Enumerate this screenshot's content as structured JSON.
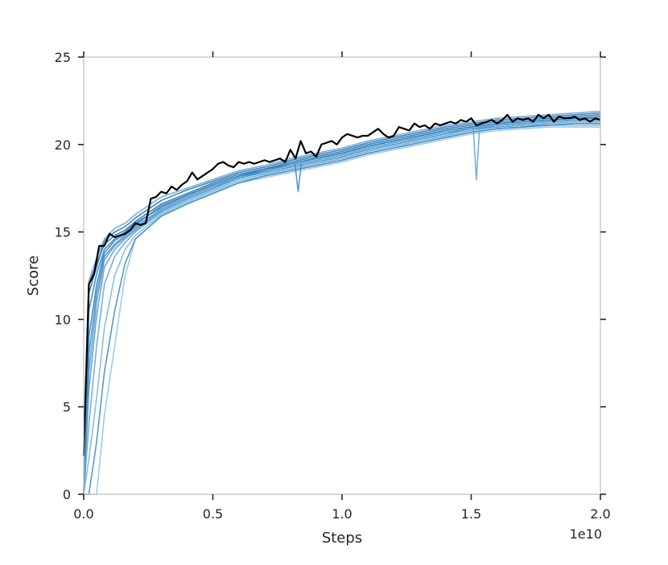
{
  "chart_data": {
    "type": "line",
    "xlabel": "Steps",
    "ylabel": "Score",
    "x_offset_label": "1e10",
    "xlim": [
      0,
      2.0
    ],
    "ylim": [
      0,
      25
    ],
    "x_ticks": [
      {
        "value": 0.0,
        "label": "0.0"
      },
      {
        "value": 0.5,
        "label": "0.5"
      },
      {
        "value": 1.0,
        "label": "1.0"
      },
      {
        "value": 1.5,
        "label": "1.5"
      },
      {
        "value": 2.0,
        "label": "2.0"
      }
    ],
    "y_ticks": [
      {
        "value": 0,
        "label": "0"
      },
      {
        "value": 5,
        "label": "5"
      },
      {
        "value": 10,
        "label": "10"
      },
      {
        "value": 15,
        "label": "15"
      },
      {
        "value": 20,
        "label": "20"
      },
      {
        "value": 25,
        "label": "25"
      }
    ],
    "grid": false,
    "legend": "none",
    "colors": {
      "runs": [
        "#1f6fb4",
        "#2b7bba",
        "#3a88c2",
        "#4b96cb",
        "#5ea3d2",
        "#76b3da",
        "#8ec2e2"
      ],
      "mean": "#000000"
    },
    "x": [
      0.0,
      0.02,
      0.05,
      0.08,
      0.12,
      0.16,
      0.2,
      0.3,
      0.4,
      0.5,
      0.6,
      0.7,
      0.8,
      0.9,
      1.0,
      1.1,
      1.2,
      1.3,
      1.4,
      1.5,
      1.6,
      1.7,
      1.8,
      1.9,
      2.0
    ],
    "mean": {
      "x": [
        0.0,
        0.02,
        0.04,
        0.06,
        0.08,
        0.1,
        0.12,
        0.14,
        0.16,
        0.18,
        0.2,
        0.22,
        0.24,
        0.26,
        0.28,
        0.3,
        0.32,
        0.34,
        0.36,
        0.38,
        0.4,
        0.42,
        0.44,
        0.46,
        0.48,
        0.5,
        0.52,
        0.54,
        0.56,
        0.58,
        0.6,
        0.62,
        0.64,
        0.66,
        0.68,
        0.7,
        0.72,
        0.74,
        0.76,
        0.78,
        0.8,
        0.82,
        0.84,
        0.86,
        0.88,
        0.9,
        0.92,
        0.94,
        0.96,
        0.98,
        1.0,
        1.02,
        1.04,
        1.06,
        1.08,
        1.1,
        1.12,
        1.14,
        1.16,
        1.18,
        1.2,
        1.22,
        1.24,
        1.26,
        1.28,
        1.3,
        1.32,
        1.34,
        1.36,
        1.38,
        1.4,
        1.42,
        1.44,
        1.46,
        1.48,
        1.5,
        1.52,
        1.54,
        1.56,
        1.58,
        1.6,
        1.62,
        1.64,
        1.66,
        1.68,
        1.7,
        1.72,
        1.74,
        1.76,
        1.78,
        1.8,
        1.82,
        1.84,
        1.86,
        1.88,
        1.9,
        1.92,
        1.94,
        1.96,
        1.98,
        2.0
      ],
      "values": [
        2.2,
        12.0,
        12.6,
        14.2,
        14.2,
        14.9,
        14.7,
        14.8,
        14.9,
        15.1,
        15.5,
        15.4,
        15.5,
        16.9,
        17.0,
        17.3,
        17.2,
        17.6,
        17.4,
        17.7,
        17.9,
        18.4,
        18.0,
        18.2,
        18.4,
        18.6,
        18.9,
        19.0,
        18.8,
        18.7,
        19.0,
        18.9,
        19.0,
        18.9,
        19.0,
        19.1,
        19.0,
        19.1,
        19.2,
        19.0,
        19.7,
        19.2,
        20.2,
        19.5,
        19.6,
        19.3,
        20.0,
        20.1,
        20.2,
        20.0,
        20.4,
        20.6,
        20.5,
        20.4,
        20.5,
        20.5,
        20.7,
        20.9,
        20.6,
        20.4,
        20.5,
        21.0,
        20.9,
        20.8,
        21.2,
        21.0,
        21.1,
        20.9,
        21.2,
        21.1,
        21.2,
        21.3,
        21.2,
        21.4,
        21.3,
        21.5,
        21.1,
        21.2,
        21.3,
        21.4,
        21.2,
        21.4,
        21.7,
        21.3,
        21.5,
        21.4,
        21.5,
        21.3,
        21.7,
        21.5,
        21.7,
        21.3,
        21.6,
        21.5,
        21.5,
        21.6,
        21.4,
        21.5,
        21.3,
        21.5,
        21.4
      ]
    },
    "series": [
      {
        "values": [
          0.0,
          12.0,
          13.2,
          14.3,
          14.8,
          15.1,
          15.6,
          16.6,
          17.2,
          17.8,
          18.3,
          18.6,
          19.0,
          19.3,
          19.6,
          20.0,
          20.3,
          20.6,
          20.9,
          21.1,
          21.3,
          21.4,
          21.5,
          21.6,
          21.7
        ],
        "spikes": []
      },
      {
        "values": [
          0.0,
          10.5,
          12.6,
          14.0,
          14.6,
          15.0,
          15.5,
          16.4,
          17.1,
          17.7,
          18.2,
          18.5,
          18.9,
          19.2,
          19.5,
          19.9,
          20.2,
          20.5,
          20.8,
          21.0,
          21.2,
          21.3,
          21.4,
          21.5,
          21.5
        ],
        "spikes": []
      },
      {
        "values": [
          0.0,
          8.0,
          11.5,
          13.6,
          14.3,
          14.8,
          15.3,
          16.3,
          17.0,
          17.6,
          18.1,
          18.5,
          18.8,
          19.1,
          19.4,
          19.8,
          20.1,
          20.4,
          20.7,
          20.9,
          21.1,
          21.2,
          21.3,
          21.4,
          21.4
        ],
        "spikes": [
          {
            "x": 0.83,
            "y": 17.3
          }
        ]
      },
      {
        "values": [
          0.0,
          6.0,
          10.2,
          13.0,
          14.0,
          14.6,
          15.1,
          16.2,
          16.9,
          17.5,
          18.1,
          18.4,
          18.7,
          19.0,
          19.3,
          19.7,
          20.0,
          20.3,
          20.6,
          20.9,
          21.0,
          21.1,
          21.2,
          21.3,
          21.3
        ],
        "spikes": []
      },
      {
        "values": [
          0.0,
          4.0,
          8.5,
          12.0,
          13.6,
          14.4,
          15.0,
          16.1,
          16.8,
          17.4,
          18.0,
          18.3,
          18.6,
          18.9,
          19.2,
          19.6,
          19.9,
          20.2,
          20.5,
          20.8,
          21.0,
          21.1,
          21.1,
          21.2,
          21.2
        ],
        "spikes": [
          {
            "x": 1.52,
            "y": 18.0
          }
        ]
      },
      {
        "values": [
          0.0,
          2.0,
          5.5,
          9.5,
          12.5,
          14.0,
          14.8,
          16.0,
          16.7,
          17.3,
          17.9,
          18.2,
          18.5,
          18.8,
          19.1,
          19.5,
          19.8,
          20.1,
          20.4,
          20.7,
          20.9,
          21.0,
          21.1,
          21.1,
          21.1
        ],
        "spikes": []
      },
      {
        "values": [
          0.0,
          0.0,
          0.0,
          4.5,
          8.5,
          12.5,
          14.6,
          15.9,
          16.6,
          17.2,
          17.8,
          18.1,
          18.4,
          18.7,
          19.0,
          19.4,
          19.7,
          20.0,
          20.3,
          20.6,
          20.8,
          20.9,
          21.0,
          21.0,
          21.0
        ],
        "spikes": []
      },
      {
        "values": [
          0.0,
          11.5,
          13.0,
          14.5,
          15.0,
          15.3,
          15.8,
          16.8,
          17.4,
          17.9,
          18.4,
          18.7,
          19.1,
          19.4,
          19.7,
          20.1,
          20.4,
          20.7,
          21.0,
          21.2,
          21.4,
          21.5,
          21.6,
          21.7,
          21.8
        ],
        "spikes": []
      },
      {
        "values": [
          0.0,
          9.0,
          12.0,
          13.8,
          14.5,
          14.9,
          15.4,
          16.5,
          17.1,
          17.7,
          18.2,
          18.6,
          18.9,
          19.2,
          19.5,
          19.9,
          20.2,
          20.5,
          20.8,
          21.0,
          21.2,
          21.3,
          21.4,
          21.5,
          21.6
        ],
        "spikes": []
      },
      {
        "values": [
          0.0,
          0.0,
          3.0,
          7.0,
          10.5,
          13.2,
          14.6,
          15.9,
          16.6,
          17.2,
          17.8,
          18.2,
          18.5,
          18.8,
          19.1,
          19.5,
          19.8,
          20.1,
          20.4,
          20.7,
          20.9,
          21.0,
          21.1,
          21.2,
          21.2
        ],
        "spikes": []
      },
      {
        "values": [
          0.0,
          7.0,
          11.0,
          13.4,
          14.2,
          14.7,
          15.2,
          16.2,
          16.9,
          17.5,
          18.1,
          18.4,
          18.7,
          19.0,
          19.3,
          19.7,
          20.0,
          20.3,
          20.6,
          20.9,
          21.1,
          21.2,
          21.3,
          21.4,
          21.4
        ],
        "spikes": []
      },
      {
        "values": [
          0.0,
          12.2,
          13.5,
          14.6,
          15.2,
          15.5,
          16.0,
          17.0,
          17.5,
          18.0,
          18.5,
          18.8,
          19.2,
          19.5,
          19.8,
          20.2,
          20.5,
          20.8,
          21.1,
          21.3,
          21.5,
          21.6,
          21.7,
          21.8,
          21.9
        ],
        "spikes": []
      }
    ]
  }
}
